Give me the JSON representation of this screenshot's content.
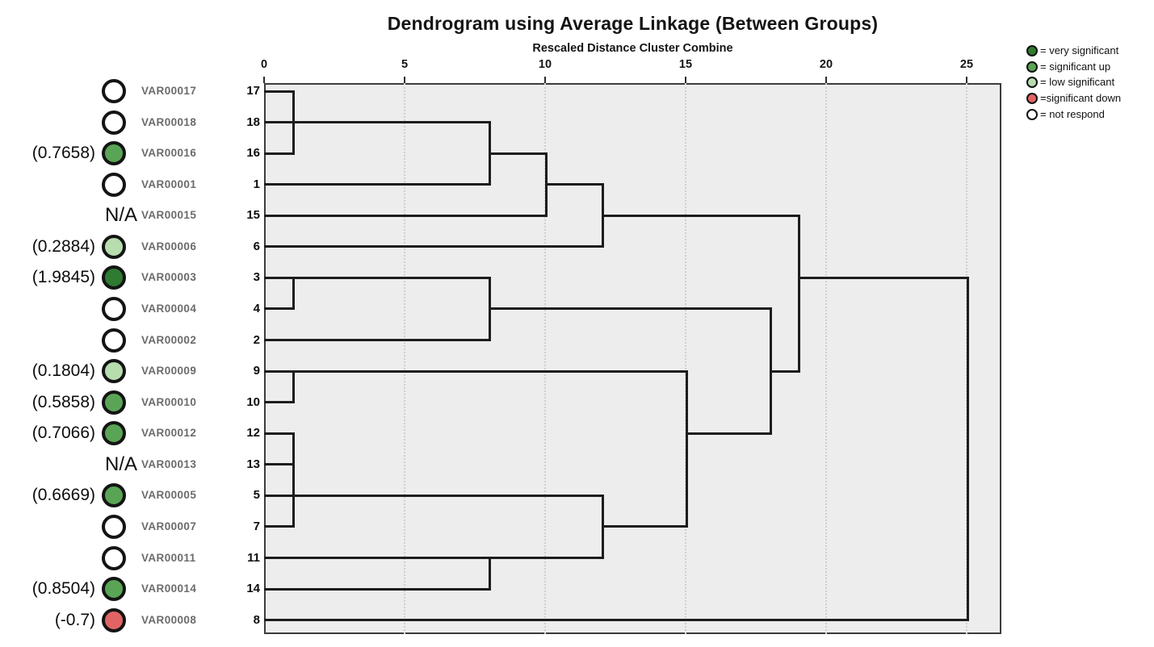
{
  "chart_data": {
    "type": "dendrogram",
    "title": "Dendrogram using Average Linkage (Between Groups)",
    "subtitle": "Rescaled Distance Cluster Combine",
    "axis": {
      "label": "Rescaled Distance Cluster Combine",
      "min": 0,
      "max": 25,
      "ticks": [
        0,
        5,
        10,
        15,
        20,
        25
      ],
      "gridlines": [
        5,
        10,
        15,
        20,
        25
      ],
      "grid_style": "dotted"
    },
    "colors": {
      "dark_green": "#2e7b31",
      "medium_green": "#5aa555",
      "light_green": "#b7dcae",
      "red": "#e16464",
      "white": "#ffffff",
      "plot_background": "#ededed",
      "line": "#1d1d1d"
    },
    "leaves": [
      {
        "case": "17",
        "var": "VAR00017",
        "value": "",
        "circle": "white"
      },
      {
        "case": "18",
        "var": "VAR00018",
        "value": "",
        "circle": "white"
      },
      {
        "case": "16",
        "var": "VAR00016",
        "value": "(0.7658)",
        "circle": "medium_green"
      },
      {
        "case": "1",
        "var": "VAR00001",
        "value": "",
        "circle": "white"
      },
      {
        "case": "15",
        "var": "VAR00015",
        "value": "N/A",
        "circle": "none"
      },
      {
        "case": "6",
        "var": "VAR00006",
        "value": "(0.2884)",
        "circle": "light_green"
      },
      {
        "case": "3",
        "var": "VAR00003",
        "value": "(1.9845)",
        "circle": "dark_green"
      },
      {
        "case": "4",
        "var": "VAR00004",
        "value": "",
        "circle": "white"
      },
      {
        "case": "2",
        "var": "VAR00002",
        "value": "",
        "circle": "white"
      },
      {
        "case": "9",
        "var": "VAR00009",
        "value": "(0.1804)",
        "circle": "light_green"
      },
      {
        "case": "10",
        "var": "VAR00010",
        "value": "(0.5858)",
        "circle": "medium_green"
      },
      {
        "case": "12",
        "var": "VAR00012",
        "value": "(0.7066)",
        "circle": "medium_green"
      },
      {
        "case": "13",
        "var": "VAR00013",
        "value": "N/A",
        "circle": "none"
      },
      {
        "case": "5",
        "var": "VAR00005",
        "value": "(0.6669)",
        "circle": "medium_green"
      },
      {
        "case": "7",
        "var": "VAR00007",
        "value": "",
        "circle": "white"
      },
      {
        "case": "11",
        "var": "VAR00011",
        "value": "",
        "circle": "white"
      },
      {
        "case": "14",
        "var": "VAR00014",
        "value": "(0.8504)",
        "circle": "medium_green"
      },
      {
        "case": "8",
        "var": "VAR00008",
        "value": "(-0.7)",
        "circle": "red"
      }
    ],
    "merges": [
      {
        "members": [
          "17",
          "18",
          "16"
        ],
        "distance": 1
      },
      {
        "members": [
          "3",
          "4"
        ],
        "distance": 1
      },
      {
        "members": [
          "9",
          "10"
        ],
        "distance": 1
      },
      {
        "members": [
          "12",
          "13",
          "5",
          "7"
        ],
        "distance": 1
      },
      {
        "members": [
          "{17,18,16}",
          "1"
        ],
        "distance": 8
      },
      {
        "members": [
          "{3,4}",
          "2"
        ],
        "distance": 8
      },
      {
        "members": [
          "11",
          "14"
        ],
        "distance": 8
      },
      {
        "members": [
          "{17,18,16,1}",
          "15"
        ],
        "distance": 10
      },
      {
        "members": [
          "{17,18,16,1,15}",
          "6"
        ],
        "distance": 12
      },
      {
        "members": [
          "{12,13,5,7}",
          "{11,14}"
        ],
        "distance": 12
      },
      {
        "members": [
          "{9,10}",
          "{12,13,5,7,11,14}"
        ],
        "distance": 15
      },
      {
        "members": [
          "{3,4,2}",
          "{9,10,12,13,5,7,11,14}"
        ],
        "distance": 18
      },
      {
        "members": [
          "{17,18,16,1,15,6}",
          "{3,4,2,9,10,12,13,5,7,11,14}"
        ],
        "distance": 19
      },
      {
        "members": [
          "{all}",
          "8"
        ],
        "distance": 25
      }
    ],
    "links": {
      "verticals": [
        {
          "d": 1,
          "r1": 0,
          "r2": 2
        },
        {
          "d": 1,
          "r1": 6,
          "r2": 7
        },
        {
          "d": 1,
          "r1": 9,
          "r2": 10
        },
        {
          "d": 1,
          "r1": 11,
          "r2": 14
        },
        {
          "d": 8,
          "r1": 1,
          "r2": 3
        },
        {
          "d": 8,
          "r1": 6,
          "r2": 8
        },
        {
          "d": 8,
          "r1": 15,
          "r2": 16
        },
        {
          "d": 10,
          "r1": 2,
          "r2": 4
        },
        {
          "d": 12,
          "r1": 3,
          "r2": 5
        },
        {
          "d": 12,
          "r1": 13,
          "r2": 15
        },
        {
          "d": 15,
          "r1": 9,
          "r2": 14
        },
        {
          "d": 18,
          "r1": 7,
          "r2": 11
        },
        {
          "d": 19,
          "r1": 4,
          "r2": 9
        },
        {
          "d": 25,
          "r1": 6,
          "r2": 17
        }
      ],
      "horizontals": [
        {
          "r": 0,
          "d1": 0,
          "d2": 1
        },
        {
          "r": 1,
          "d1": 0,
          "d2": 8
        },
        {
          "r": 2,
          "d1": 0,
          "d2": 1
        },
        {
          "r": 2,
          "d1": 8,
          "d2": 10
        },
        {
          "r": 3,
          "d1": 0,
          "d2": 8
        },
        {
          "r": 3,
          "d1": 10,
          "d2": 12
        },
        {
          "r": 4,
          "d1": 0,
          "d2": 10
        },
        {
          "r": 4,
          "d1": 12,
          "d2": 19
        },
        {
          "r": 5,
          "d1": 0,
          "d2": 12
        },
        {
          "r": 6,
          "d1": 0,
          "d2": 8
        },
        {
          "r": 6,
          "d1": 19,
          "d2": 25
        },
        {
          "r": 7,
          "d1": 0,
          "d2": 1
        },
        {
          "r": 7,
          "d1": 8,
          "d2": 18
        },
        {
          "r": 8,
          "d1": 0,
          "d2": 8
        },
        {
          "r": 9,
          "d1": 0,
          "d2": 15
        },
        {
          "r": 9,
          "d1": 18,
          "d2": 19
        },
        {
          "r": 10,
          "d1": 0,
          "d2": 1
        },
        {
          "r": 11,
          "d1": 0,
          "d2": 1
        },
        {
          "r": 11,
          "d1": 15,
          "d2": 18
        },
        {
          "r": 12,
          "d1": 0,
          "d2": 1
        },
        {
          "r": 13,
          "d1": 0,
          "d2": 12
        },
        {
          "r": 14,
          "d1": 0,
          "d2": 1
        },
        {
          "r": 14,
          "d1": 12,
          "d2": 15
        },
        {
          "r": 15,
          "d1": 0,
          "d2": 12
        },
        {
          "r": 16,
          "d1": 0,
          "d2": 8
        },
        {
          "r": 17,
          "d1": 0,
          "d2": 25
        }
      ]
    },
    "legend": [
      {
        "color": "dark_green",
        "label": "= very significant"
      },
      {
        "color": "medium_green",
        "label": "= significant up"
      },
      {
        "color": "light_green",
        "label": "= low significant"
      },
      {
        "color": "red",
        "label": "=significant down"
      },
      {
        "color": "white",
        "label": "= not respond"
      }
    ]
  }
}
